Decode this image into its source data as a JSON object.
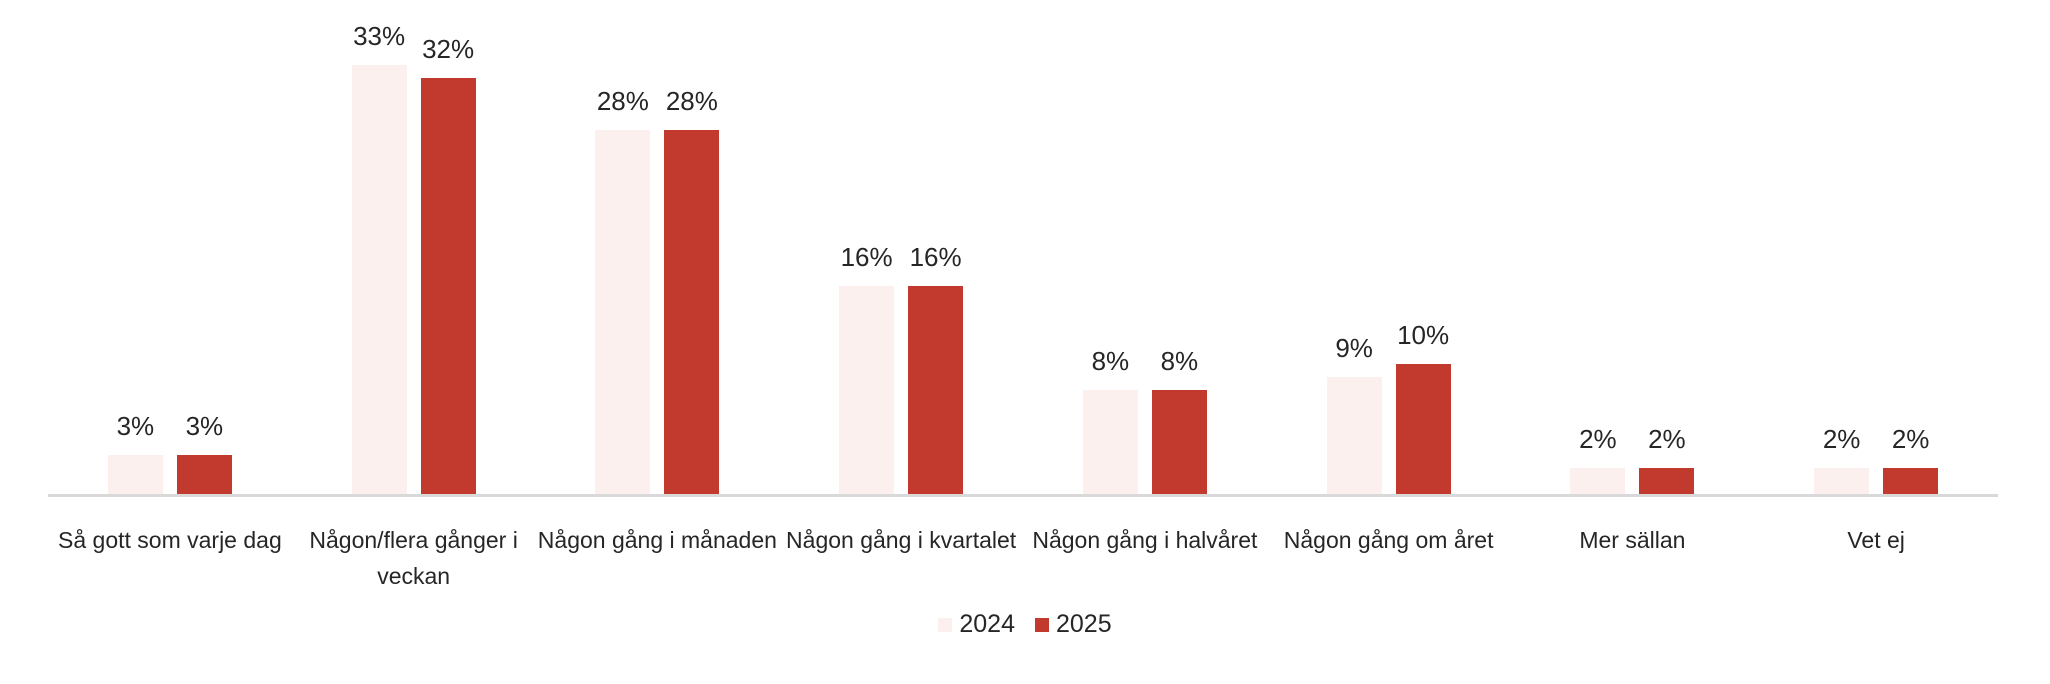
{
  "chart_data": {
    "type": "bar",
    "title": "",
    "xlabel": "",
    "ylabel": "",
    "value_suffix": "%",
    "categories": [
      "Så gott som varje dag",
      "Någon/flera gånger i veckan",
      "Någon gång i månaden",
      "Någon gång i kvartalet",
      "Någon gång i halvåret",
      "Någon gång om året",
      "Mer sällan",
      "Vet ej"
    ],
    "series": [
      {
        "name": "2024",
        "color": "#FCF0EF",
        "values": [
          3,
          33,
          28,
          16,
          8,
          9,
          2,
          2
        ]
      },
      {
        "name": "2025",
        "color": "#C23A2E",
        "values": [
          3,
          32,
          28,
          16,
          8,
          10,
          2,
          2
        ]
      }
    ],
    "ylim": [
      0,
      35
    ],
    "grid": false,
    "legend_position": "bottom",
    "axis_line_color": "#D9D9D9",
    "label_color": "#262626"
  }
}
